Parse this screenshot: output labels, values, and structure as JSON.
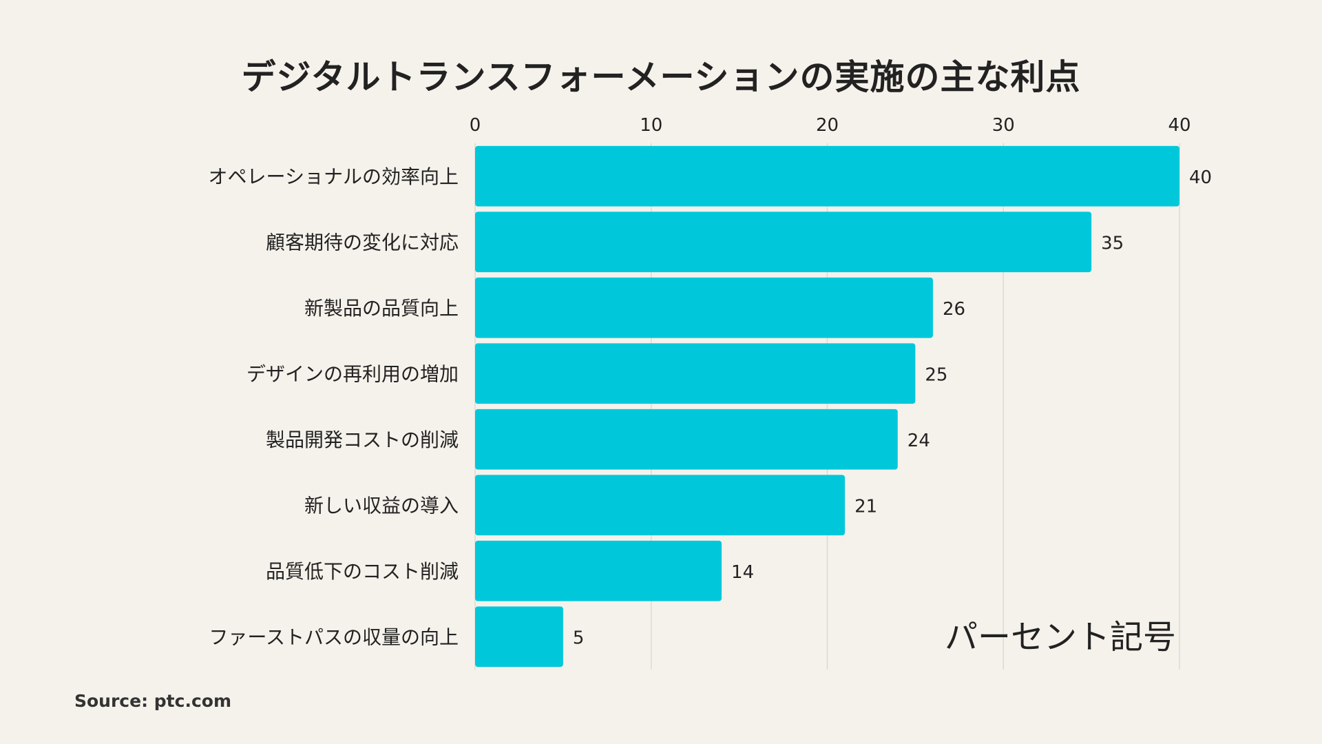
{
  "chart_data": {
    "type": "bar",
    "orientation": "horizontal",
    "title": "デジタルトランスフォーメーションの実施の主な利点",
    "categories": [
      "オペレーショナルの効率向上",
      "顧客期待の変化に対応",
      "新製品の品質向上",
      "デザインの再利用の増加",
      "製品開発コストの削減",
      "新しい収益の導入",
      "品質低下のコスト削減",
      "ファーストパスの収量の向上"
    ],
    "values": [
      40,
      35,
      26,
      25,
      24,
      21,
      14,
      5
    ],
    "xlim": [
      0,
      40
    ],
    "xticks": [
      0,
      10,
      20,
      30,
      40
    ],
    "axis_position": "top",
    "grid": true,
    "unit_label": "パーセント記号",
    "bar_color": "#00c8da",
    "source": "Source: ptc.com"
  }
}
